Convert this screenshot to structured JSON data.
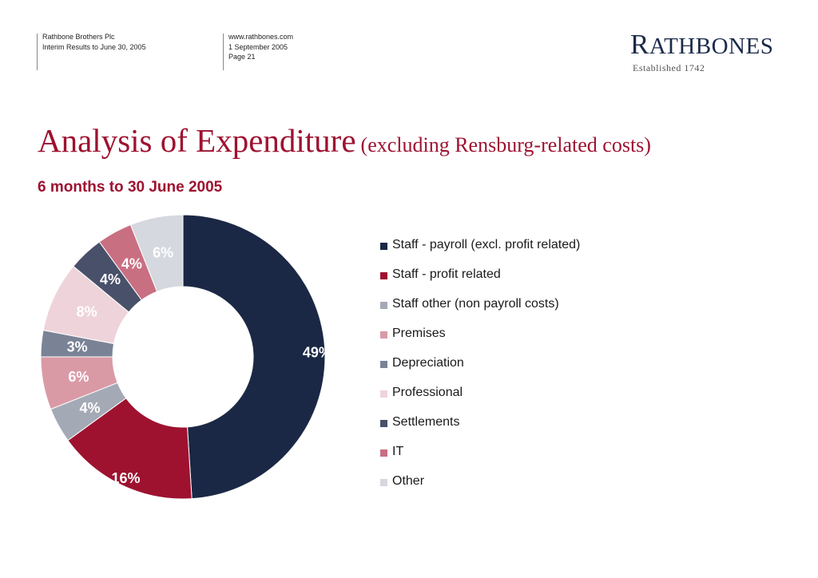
{
  "header": {
    "company": "Rathbone Brothers Plc",
    "document": "Interim Results to June 30, 2005",
    "website": "www.rathbones.com",
    "date": "1 September 2005",
    "page": "Page 21"
  },
  "logo": {
    "name_initial": "R",
    "name_rest": "ATHBONES",
    "tagline": "Established 1742"
  },
  "title": {
    "main": "Analysis of Expenditure",
    "sub": "(excluding Rensburg-related costs)"
  },
  "subtitle": "6 months to 30 June 2005",
  "chart_data": {
    "type": "pie",
    "donut": true,
    "legend_position": "right",
    "categories": [
      "Staff - payroll (excl. profit related)",
      "Staff - profit related",
      "Staff other (non payroll costs)",
      "Premises",
      "Depreciation",
      "Professional",
      "Settlements",
      "IT",
      "Other"
    ],
    "values": [
      49,
      16,
      4,
      6,
      3,
      8,
      4,
      4,
      6
    ],
    "labels": [
      "49%",
      "16%",
      "4%",
      "6%",
      "3%",
      "8%",
      "4%",
      "4%",
      "6%"
    ],
    "colors": [
      "#1b2845",
      "#9e1230",
      "#a4aab5",
      "#d99aa6",
      "#7a8296",
      "#eed4da",
      "#48506a",
      "#c96f82",
      "#d5d8de"
    ],
    "label_colors": [
      "#ffffff",
      "#ffffff",
      "#ffffff",
      "#ffffff",
      "#ffffff",
      "#ffffff",
      "#ffffff",
      "#ffffff",
      "#ffffff"
    ]
  }
}
